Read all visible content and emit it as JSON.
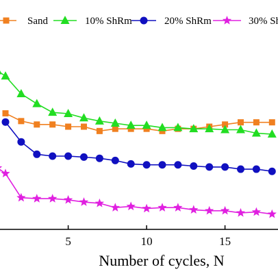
{
  "chart_data": {
    "type": "line",
    "xlabel": "Number of cycles, N",
    "ylabel": "",
    "title": "",
    "x_ticks": [
      5,
      10,
      15
    ],
    "xlim": [
      0.3,
      18
    ],
    "ylim": [
      0,
      1
    ],
    "grid": false,
    "legend_position": "top",
    "series": [
      {
        "name": "Sand",
        "color": "#F08020",
        "marker": "square",
        "x": [
          1,
          2,
          3,
          4,
          5,
          6,
          7,
          8,
          9,
          10,
          11,
          12,
          13,
          14,
          15,
          16,
          17,
          18
        ],
        "y": [
          0.628,
          0.603,
          0.592,
          0.592,
          0.585,
          0.585,
          0.571,
          0.578,
          0.578,
          0.578,
          0.571,
          0.578,
          0.578,
          0.585,
          0.592,
          0.599,
          0.599,
          0.599
        ]
      },
      {
        "name": "10% ShRm",
        "color": "#22DD22",
        "marker": "triangle",
        "x": [
          0.5,
          1,
          2,
          3,
          4,
          5,
          6,
          7,
          8,
          9,
          10,
          11,
          12,
          13,
          14,
          15,
          16,
          17,
          18
        ],
        "y": [
          0.765,
          0.748,
          0.691,
          0.659,
          0.631,
          0.627,
          0.613,
          0.603,
          0.596,
          0.589,
          0.589,
          0.582,
          0.582,
          0.578,
          0.578,
          0.575,
          0.575,
          0.564,
          0.561
        ]
      },
      {
        "name": "20% ShRm",
        "color": "#1010C0",
        "marker": "circle",
        "x": [
          1,
          2,
          3,
          4,
          5,
          6,
          7,
          8,
          9,
          10,
          11,
          12,
          13,
          14,
          15,
          16,
          17,
          18
        ],
        "y": [
          0.6,
          0.536,
          0.496,
          0.49,
          0.49,
          0.487,
          0.483,
          0.476,
          0.465,
          0.462,
          0.462,
          0.462,
          0.458,
          0.455,
          0.455,
          0.448,
          0.448,
          0.441
        ]
      },
      {
        "name": "30% ShRm",
        "color": "#E020E0",
        "marker": "star",
        "x": [
          0.5,
          1,
          2,
          3,
          4,
          5,
          6,
          7,
          8,
          9,
          10,
          11,
          12,
          13,
          14,
          15,
          16,
          17,
          18
        ],
        "y": [
          0.452,
          0.434,
          0.356,
          0.353,
          0.353,
          0.349,
          0.342,
          0.338,
          0.324,
          0.328,
          0.321,
          0.324,
          0.324,
          0.317,
          0.314,
          0.314,
          0.307,
          0.31,
          0.303
        ]
      }
    ]
  }
}
